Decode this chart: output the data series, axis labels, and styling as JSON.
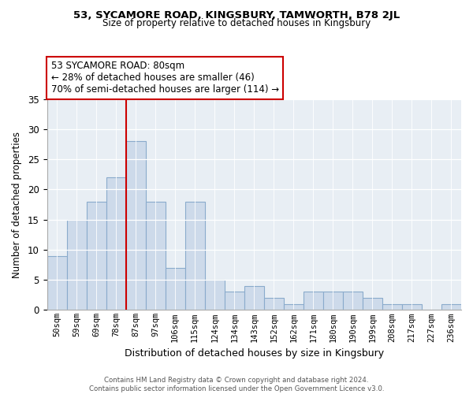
{
  "title": "53, SYCAMORE ROAD, KINGSBURY, TAMWORTH, B78 2JL",
  "subtitle": "Size of property relative to detached houses in Kingsbury",
  "xlabel": "Distribution of detached houses by size in Kingsbury",
  "ylabel": "Number of detached properties",
  "bar_labels": [
    "50sqm",
    "59sqm",
    "69sqm",
    "78sqm",
    "87sqm",
    "97sqm",
    "106sqm",
    "115sqm",
    "124sqm",
    "134sqm",
    "143sqm",
    "152sqm",
    "162sqm",
    "171sqm",
    "180sqm",
    "190sqm",
    "199sqm",
    "208sqm",
    "217sqm",
    "227sqm",
    "236sqm"
  ],
  "bar_values": [
    9,
    15,
    18,
    22,
    28,
    18,
    7,
    18,
    5,
    3,
    4,
    2,
    1,
    3,
    3,
    3,
    2,
    1,
    1,
    0,
    1
  ],
  "bar_color": "#cddaea",
  "bar_edgecolor": "#8aabcc",
  "ylim": [
    0,
    35
  ],
  "yticks": [
    0,
    5,
    10,
    15,
    20,
    25,
    30,
    35
  ],
  "vline_color": "#cc0000",
  "annotation_title": "53 SYCAMORE ROAD: 80sqm",
  "annotation_line1": "← 28% of detached houses are smaller (46)",
  "annotation_line2": "70% of semi-detached houses are larger (114) →",
  "annotation_box_color": "#ffffff",
  "annotation_box_edgecolor": "#cc0000",
  "footer_line1": "Contains HM Land Registry data © Crown copyright and database right 2024.",
  "footer_line2": "Contains public sector information licensed under the Open Government Licence v3.0.",
  "background_color": "#e8eef4"
}
